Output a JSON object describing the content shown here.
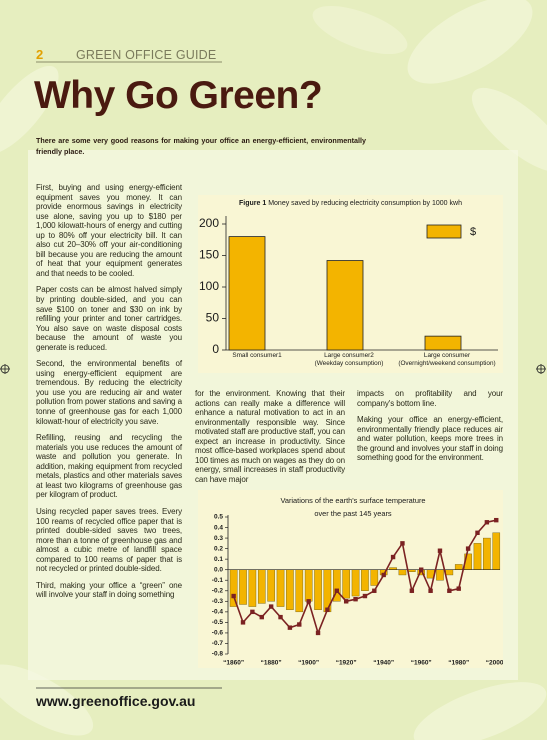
{
  "header": {
    "page_number": "2",
    "section": "GREEN OFFICE GUIDE"
  },
  "title": "Why Go Green?",
  "intro": "There are some very good reasons for making your office an energy-efficient, environmentally friendly place.",
  "columns": [
    [
      "First, buying and using energy-efficient equipment saves you money. It can provide enormous savings in electricity use alone, saving you up to $180 per 1,000 kilowatt-hours of energy and cutting up to 80% off your electricity bill. It can also cut 20–30% off your air-conditioning bill because you are reducing the amount of heat that your equipment generates and that needs to be cooled.",
      "Paper costs can be almost halved simply by printing double-sided, and you can save $100 on toner and $30 on ink by refilling your printer and toner cartridges. You also save on waste disposal costs because the amount of waste you generate is reduced.",
      "Second, the environmental benefits of using energy-efficient equipment are tremendous. By reducing the electricity you use you are reducing air and water pollution from power stations and saving a tonne of greenhouse gas for each 1,000 kilowatt-hour of electricity you save.",
      "Refilling, reusing and recycling the materials you use reduces the amount of waste and pollution you generate. In addition, making equipment from recycled metals, plastics and other materials saves at least two kilograms of greenhouse gas per kilogram of product.",
      "Using recycled paper saves trees. Every 100 reams of recycled office paper that is printed double-sided saves two trees, more than a tonne of greenhouse gas and almost a cubic metre of landfill space compared to 100 reams of paper that is not recycled or printed double-sided.",
      "Third, making your office a “green” one will involve your staff in doing something"
    ],
    [
      "for the environment. Knowing that their actions can really make a difference will enhance a natural motivation to act in an environmentally responsible way. Since motivated staff are productive staff, you can expect an increase in productivity. Since most office-based workplaces spend about 100 times as much on wages as they do on energy, small increases in staff productivity can have major"
    ],
    [
      "impacts on profitability and your company's bottom line.",
      "Making your office an energy-efficient, environmentally friendly place reduces air and water pollution, keeps more trees in the ground and involves your staff in doing something good for the environment."
    ]
  ],
  "footer": "www.greenoffice.gov.au",
  "chart_data": [
    {
      "type": "bar",
      "figure_label": "Figure 1",
      "title": "Money saved by reducing electricity consumption by 1000 kwh",
      "categories": [
        "Small consumer1",
        "Large consumer2\n(Weekday consumption)",
        "Large consumer\n(Overnight/weekend consumption)"
      ],
      "series": [
        {
          "name": "$",
          "color": "#f3b400",
          "values": [
            180,
            142,
            22
          ]
        }
      ],
      "ylim": [
        0,
        200
      ],
      "yticks": [
        0,
        50,
        100,
        150,
        200
      ],
      "legend": "top-right"
    },
    {
      "type": "combo",
      "title": "Variations of the earth's surface temperature over the past 145 years",
      "x": [
        1860,
        1865,
        1870,
        1875,
        1880,
        1885,
        1890,
        1895,
        1900,
        1905,
        1910,
        1915,
        1920,
        1925,
        1930,
        1935,
        1940,
        1945,
        1950,
        1955,
        1960,
        1965,
        1970,
        1975,
        1980,
        1985,
        1990,
        1995,
        2000
      ],
      "series": [
        {
          "type": "bar",
          "color": "#f3b400",
          "values": [
            -0.35,
            -0.33,
            -0.35,
            -0.32,
            -0.3,
            -0.35,
            -0.38,
            -0.4,
            -0.3,
            -0.38,
            -0.4,
            -0.3,
            -0.27,
            -0.25,
            -0.2,
            -0.15,
            -0.05,
            0.02,
            -0.05,
            -0.02,
            -0.05,
            -0.08,
            -0.1,
            -0.05,
            0.05,
            0.15,
            0.25,
            0.3,
            0.35
          ]
        },
        {
          "type": "line",
          "color": "#7b2222",
          "values": [
            -0.25,
            -0.5,
            -0.4,
            -0.45,
            -0.35,
            -0.45,
            -0.55,
            -0.52,
            -0.3,
            -0.6,
            -0.38,
            -0.2,
            -0.3,
            -0.28,
            -0.25,
            -0.2,
            -0.05,
            0.12,
            0.25,
            -0.2,
            0.0,
            -0.2,
            0.18,
            -0.2,
            -0.18,
            0.2,
            0.35,
            0.45,
            0.47
          ]
        }
      ],
      "xlim": [
        1857,
        2002
      ],
      "xticks": [
        {
          "value": 1860,
          "label": "“1860”"
        },
        {
          "value": 1880,
          "label": "“1880”"
        },
        {
          "value": 1900,
          "label": "“1900”"
        },
        {
          "value": 1920,
          "label": "“1920”"
        },
        {
          "value": 1940,
          "label": "“1940”"
        },
        {
          "value": 1960,
          "label": "“1960”"
        },
        {
          "value": 1980,
          "label": "“1980”"
        },
        {
          "value": 2000,
          "label": "“2000”"
        }
      ],
      "ylim": [
        -0.8,
        0.5
      ],
      "yticks": [
        0.5,
        0.4,
        0.3,
        0.2,
        0.1,
        {
          "value": 0,
          "label": "0.0"
        },
        -0.1,
        -0.2,
        -0.3,
        -0.4,
        -0.5,
        -0.6,
        -0.7,
        -0.8
      ]
    }
  ]
}
